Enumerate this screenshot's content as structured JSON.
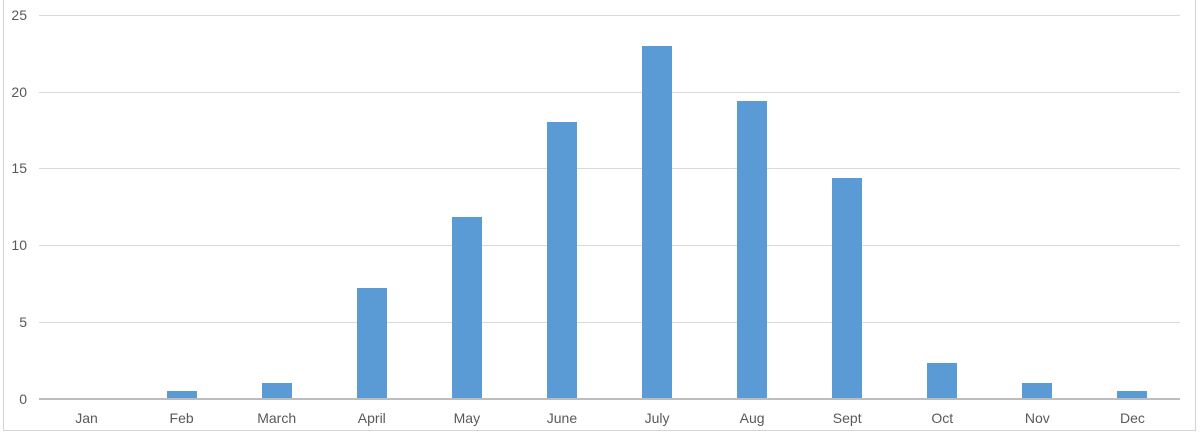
{
  "chart_data": {
    "type": "bar",
    "title": "",
    "xlabel": "",
    "ylabel": "",
    "categories": [
      "Jan",
      "Feb",
      "March",
      "April",
      "May",
      "June",
      "July",
      "Aug",
      "Sept",
      "Oct",
      "Nov",
      "Dec"
    ],
    "values": [
      0,
      0.5,
      1,
      7.2,
      11.8,
      18,
      23,
      19.4,
      14.4,
      2.3,
      1,
      0.5
    ],
    "ylim": [
      0,
      25
    ],
    "yticks": [
      0,
      5,
      10,
      15,
      20,
      25
    ],
    "grid": true,
    "legend": "none",
    "colors": {
      "bar": "#5b9bd5",
      "gridline": "#d9d9d9",
      "axis_line": "#bdbdbd",
      "tick_label": "#595959",
      "chart_border": "#d4d4d4",
      "background": "#ffffff"
    }
  }
}
